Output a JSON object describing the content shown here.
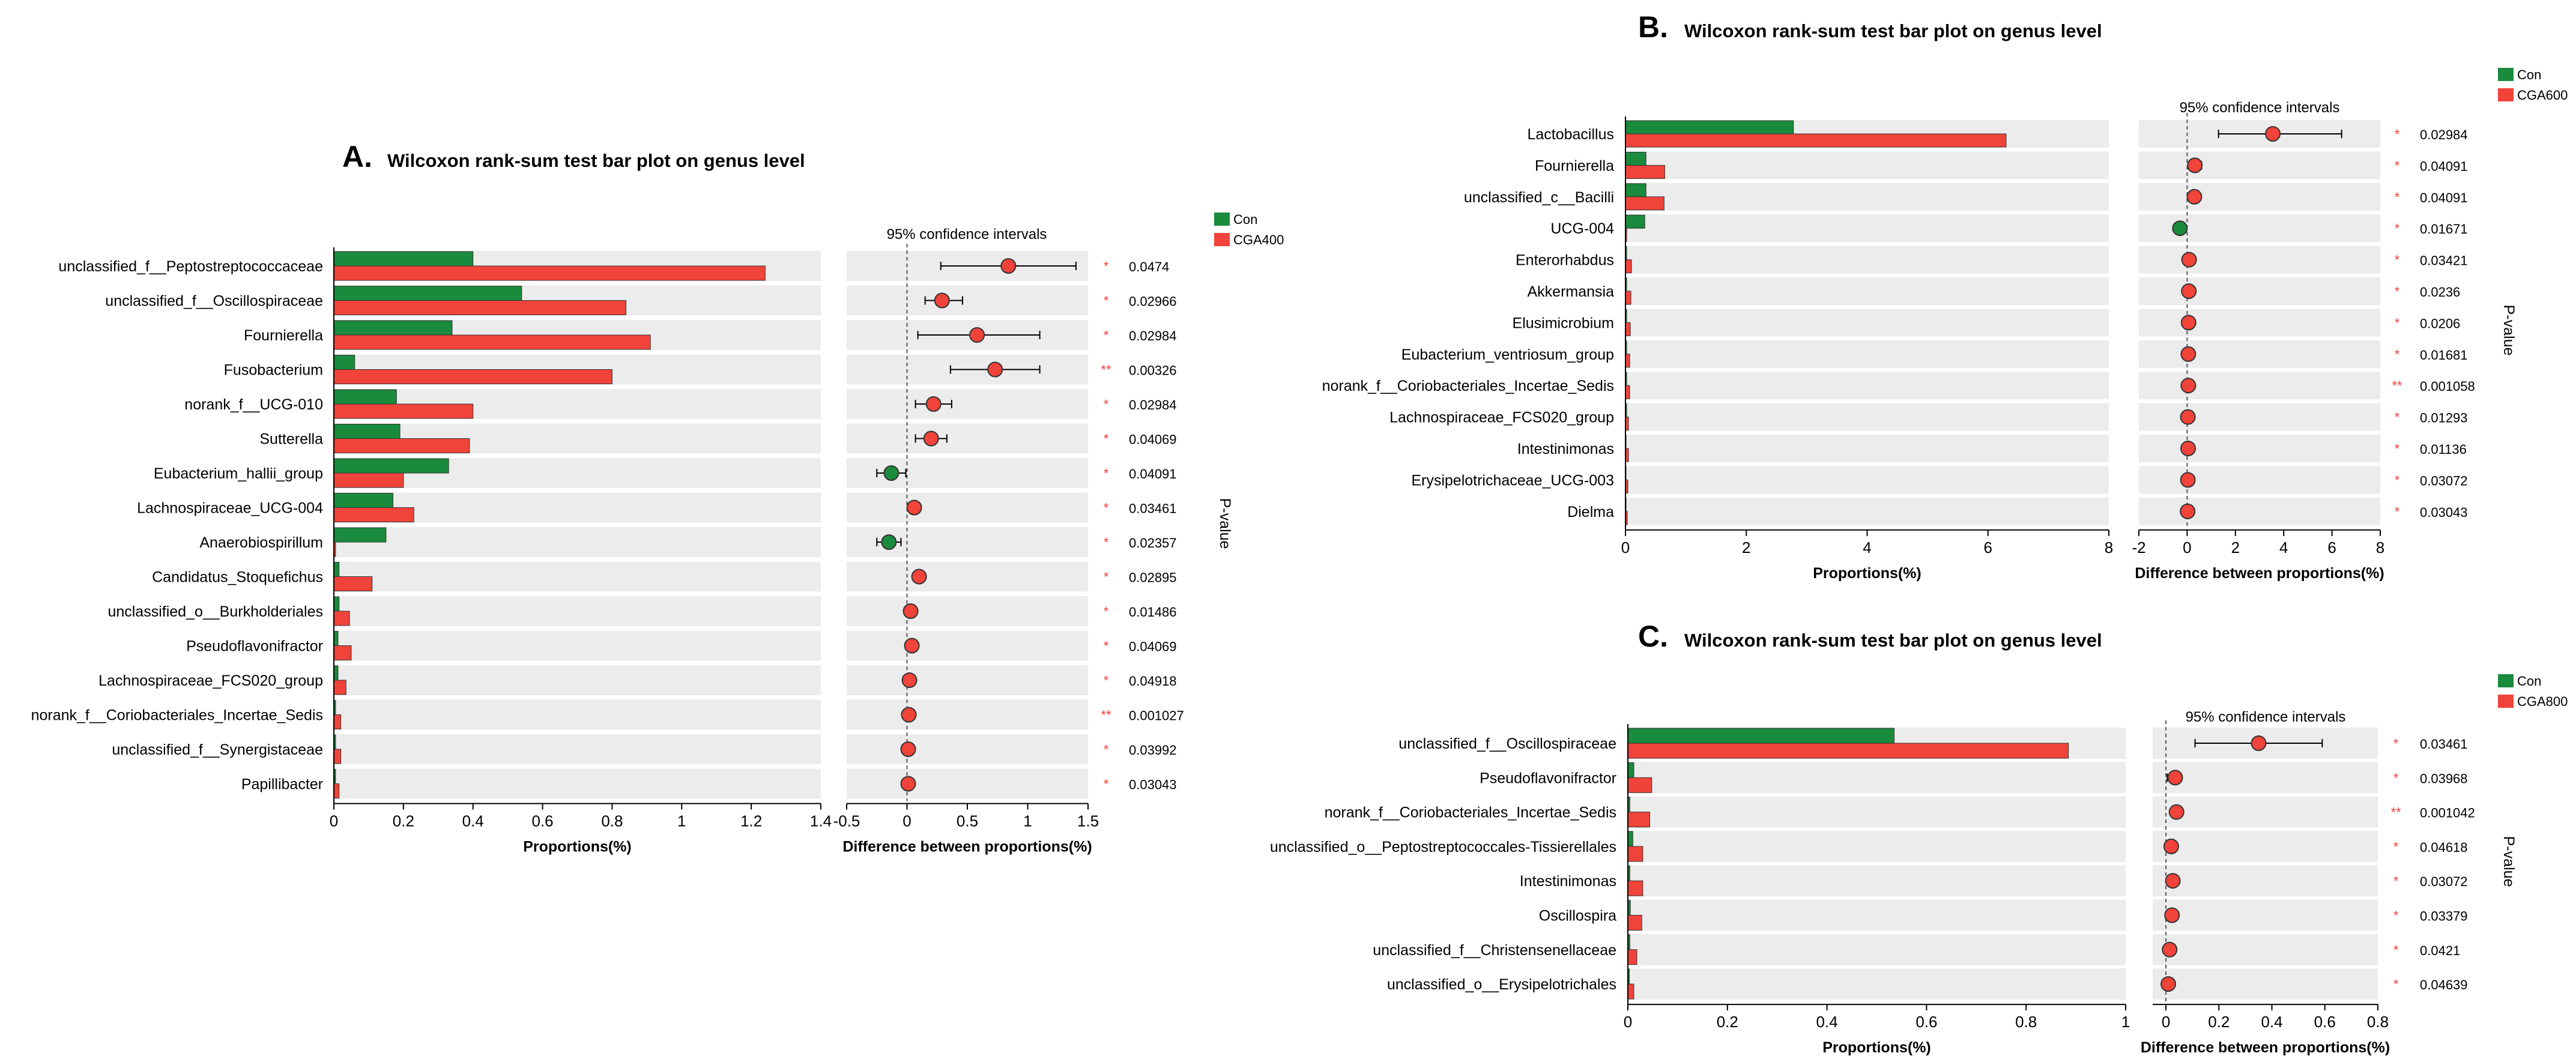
{
  "chart_data": [
    {
      "type": "bar",
      "panel_letter": "A.",
      "title": "Wilcoxon rank-sum test bar plot on genus level",
      "ci_title": "95% confidence intervals",
      "xlabel": "Proportions(%)",
      "diff_xlabel": "Difference between proportions(%)",
      "pvalue_label": "P-value",
      "xlim": [
        0,
        1.4
      ],
      "xticks": [
        "0",
        "0.2",
        "0.4",
        "0.6",
        "0.8",
        "1",
        "1.2",
        "1.4"
      ],
      "diff_xlim": [
        -0.5,
        1.5
      ],
      "diff_xticks": [
        "-0.5",
        "0",
        "0.5",
        "1",
        "1.5"
      ],
      "legend": [
        {
          "name": "Con",
          "color": "#1a8a3c"
        },
        {
          "name": "CGA400",
          "color": "#f0433a"
        }
      ],
      "categories": [
        "unclassified_f__Peptostreptococcaceae",
        "unclassified_f__Oscillospiraceae",
        "Fournierella",
        "Fusobacterium",
        "norank_f__UCG-010",
        "Sutterella",
        "Eubacterium_hallii_group",
        "Lachnospiraceae_UCG-004",
        "Anaerobiospirillum",
        "Candidatus_Stoquefichus",
        "unclassified_o__Burkholderiales",
        "Pseudoflavonifractor",
        "Lachnospiraceae_FCS020_group",
        "norank_f__Coriobacteriales_Incertae_Sedis",
        "unclassified_f__Synergistaceae",
        "Papillibacter"
      ],
      "series": [
        {
          "name": "Con",
          "values": [
            0.4,
            0.54,
            0.34,
            0.06,
            0.18,
            0.19,
            0.33,
            0.17,
            0.15,
            0.015,
            0.015,
            0.012,
            0.012,
            0.005,
            0.005,
            0.005
          ]
        },
        {
          "name": "CGA400",
          "values": [
            1.24,
            0.84,
            0.91,
            0.8,
            0.4,
            0.39,
            0.2,
            0.23,
            0.005,
            0.11,
            0.045,
            0.05,
            0.035,
            0.02,
            0.02,
            0.015
          ]
        }
      ],
      "diff": [
        0.84,
        0.29,
        0.58,
        0.73,
        0.22,
        0.2,
        -0.13,
        0.06,
        -0.15,
        0.1,
        0.03,
        0.04,
        0.02,
        0.015,
        0.01,
        0.01
      ],
      "ci_low": [
        0.28,
        0.15,
        0.09,
        0.36,
        0.07,
        0.07,
        -0.25,
        0.02,
        -0.25,
        0.06,
        0.01,
        0.01,
        0.0,
        0.0,
        0.0,
        0.0
      ],
      "ci_high": [
        1.4,
        0.46,
        1.1,
        1.1,
        0.37,
        0.33,
        -0.01,
        0.1,
        -0.05,
        0.14,
        0.05,
        0.07,
        0.04,
        0.03,
        0.02,
        0.02
      ],
      "pvalues": [
        "0.0474",
        "0.02966",
        "0.02984",
        "0.00326",
        "0.02984",
        "0.04069",
        "0.04091",
        "0.03461",
        "0.02357",
        "0.02895",
        "0.01486",
        "0.04069",
        "0.04918",
        "0.001027",
        "0.03992",
        "0.03043"
      ],
      "stars": [
        "*",
        "*",
        "*",
        "**",
        "*",
        "*",
        "*",
        "*",
        "*",
        "*",
        "*",
        "*",
        "*",
        "**",
        "*",
        "*"
      ]
    },
    {
      "type": "bar",
      "panel_letter": "B.",
      "title": "Wilcoxon rank-sum test bar plot on genus level",
      "ci_title": "95% confidence intervals",
      "xlabel": "Proportions(%)",
      "diff_xlabel": "Difference between proportions(%)",
      "pvalue_label": "P-value",
      "xlim": [
        0,
        8
      ],
      "xticks": [
        "0",
        "2",
        "4",
        "6",
        "8"
      ],
      "diff_xlim": [
        -2,
        8
      ],
      "diff_xticks": [
        "-2",
        "0",
        "2",
        "4",
        "6",
        "8"
      ],
      "legend": [
        {
          "name": "Con",
          "color": "#1a8a3c"
        },
        {
          "name": "CGA600",
          "color": "#f0433a"
        }
      ],
      "categories": [
        "Lactobacillus",
        "Fournierella",
        "unclassified_c__Bacilli",
        "UCG-004",
        "Enterorhabdus",
        "Akkermansia",
        "Elusimicrobium",
        "Eubacterium_ventriosum_group",
        "norank_f__Coriobacteriales_Incertae_Sedis",
        "Lachnospiraceae_FCS020_group",
        "Intestinimonas",
        "Erysipelotrichaceae_UCG-003",
        "Dielma"
      ],
      "series": [
        {
          "name": "Con",
          "values": [
            2.78,
            0.34,
            0.34,
            0.32,
            0.02,
            0.02,
            0.02,
            0.02,
            0.02,
            0.02,
            0.01,
            0.01,
            0.01
          ]
        },
        {
          "name": "CGA600",
          "values": [
            6.3,
            0.65,
            0.64,
            0.02,
            0.1,
            0.09,
            0.08,
            0.07,
            0.07,
            0.05,
            0.05,
            0.04,
            0.03
          ]
        }
      ],
      "diff": [
        3.55,
        0.32,
        0.3,
        -0.3,
        0.08,
        0.07,
        0.06,
        0.05,
        0.05,
        0.03,
        0.04,
        0.03,
        0.02
      ],
      "ci_low": [
        1.3,
        0.05,
        0.05,
        -0.45,
        0.0,
        0.0,
        0.0,
        0.0,
        0.0,
        0.0,
        0.0,
        0.0,
        0.0
      ],
      "ci_high": [
        6.4,
        0.6,
        0.55,
        -0.1,
        0.15,
        0.14,
        0.12,
        0.1,
        0.1,
        0.06,
        0.08,
        0.06,
        0.04
      ],
      "pvalues": [
        "0.02984",
        "0.04091",
        "0.04091",
        "0.01671",
        "0.03421",
        "0.0236",
        "0.0206",
        "0.01681",
        "0.001058",
        "0.01293",
        "0.01136",
        "0.03072",
        "0.03043"
      ],
      "stars": [
        "*",
        "*",
        "*",
        "*",
        "*",
        "*",
        "*",
        "*",
        "**",
        "*",
        "*",
        "*",
        "*"
      ]
    },
    {
      "type": "bar",
      "panel_letter": "C.",
      "title": "Wilcoxon rank-sum test bar plot on genus level",
      "ci_title": "95% confidence intervals",
      "xlabel": "Proportions(%)",
      "diff_xlabel": "Difference between proportions(%)",
      "pvalue_label": "P-value",
      "xlim": [
        0,
        1
      ],
      "xticks": [
        "0",
        "0.2",
        "0.4",
        "0.6",
        "0.8",
        "1"
      ],
      "diff_xlim": [
        -0.05,
        0.8
      ],
      "diff_xticks": [
        "0",
        "0.2",
        "0.4",
        "0.6",
        "0.8"
      ],
      "diff_tick_values": [
        0,
        0.2,
        0.4,
        0.6,
        0.8
      ],
      "legend": [
        {
          "name": "Con",
          "color": "#1a8a3c"
        },
        {
          "name": "CGA800",
          "color": "#f0433a"
        }
      ],
      "categories": [
        "unclassified_f__Oscillospiraceae",
        "Pseudoflavonifractor",
        "norank_f__Coriobacteriales_Incertae_Sedis",
        "unclassified_o__Peptostreptococcales-Tissierellales",
        "Intestinimonas",
        "Oscillospira",
        "unclassified_f__Christensenellaceae",
        "unclassified_o__Erysipelotrichales"
      ],
      "series": [
        {
          "name": "Con",
          "values": [
            0.535,
            0.012,
            0.004,
            0.01,
            0.004,
            0.005,
            0.004,
            0.003
          ]
        },
        {
          "name": "CGA800",
          "values": [
            0.885,
            0.048,
            0.044,
            0.03,
            0.03,
            0.028,
            0.018,
            0.012
          ]
        }
      ],
      "diff": [
        0.35,
        0.035,
        0.04,
        0.02,
        0.026,
        0.023,
        0.014,
        0.009
      ],
      "ci_low": [
        0.11,
        0.005,
        0.02,
        0.005,
        0.01,
        0.008,
        0.004,
        0.002
      ],
      "ci_high": [
        0.59,
        0.05,
        0.05,
        0.03,
        0.045,
        0.035,
        0.022,
        0.015
      ],
      "pvalues": [
        "0.03461",
        "0.03968",
        "0.001042",
        "0.04618",
        "0.03072",
        "0.03379",
        "0.0421",
        "0.04639"
      ],
      "stars": [
        "*",
        "*",
        "**",
        "*",
        "*",
        "*",
        "*",
        "*"
      ]
    }
  ]
}
